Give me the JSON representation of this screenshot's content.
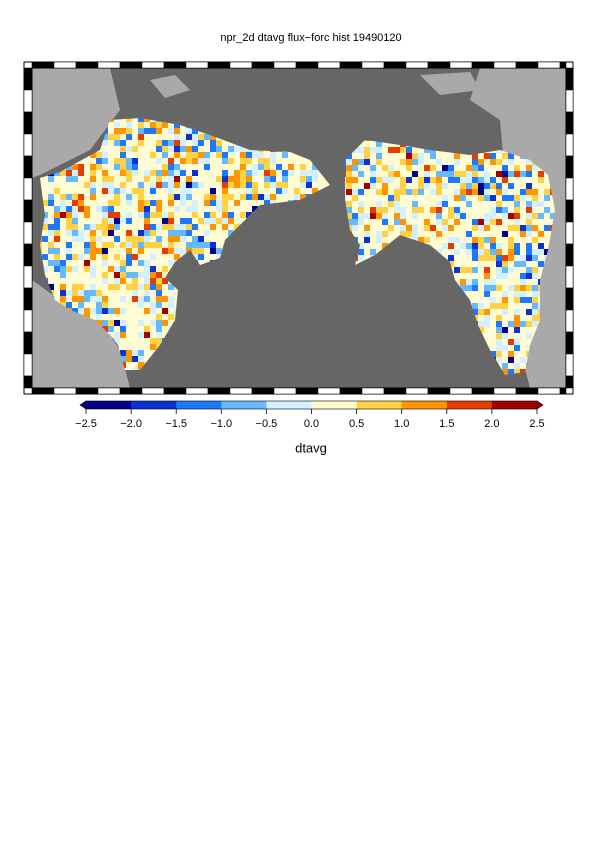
{
  "title": "npr_2d dtavg flux−forc hist 19490120",
  "colorbar": {
    "ticks": [
      {
        "value": -2.5,
        "label": "−2.5"
      },
      {
        "value": -2.0,
        "label": "−2.0"
      },
      {
        "value": -1.5,
        "label": "−1.5"
      },
      {
        "value": -1.0,
        "label": "−1.0"
      },
      {
        "value": -0.5,
        "label": "−0.5"
      },
      {
        "value": 0,
        "label": "0.0"
      },
      0.5,
      {
        "value": 1.0,
        "label": "1.0"
      },
      1.5,
      {
        "value": 2.0,
        "label": "2.0"
      },
      2.5
    ],
    "colors": [
      "#00008b",
      "#0a32d2",
      "#1e78ff",
      "#64b9ff",
      "#d2f0ff",
      "#fffbd2",
      "#ffd246",
      "#ff9600",
      "#e63c00",
      "#a00000"
    ],
    "label": "dtavg"
  }
}
